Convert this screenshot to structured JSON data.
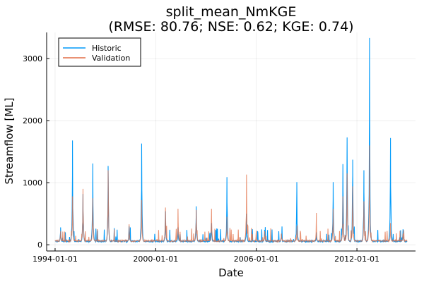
{
  "chart_data": {
    "type": "line",
    "title": "split_mean_NmKGE",
    "subtitle": "(RMSE: 80.76; NSE: 0.62; KGE: 0.74)",
    "xlabel": "Date",
    "ylabel": "Streamflow [ML]",
    "x_range": [
      "1993-07-01",
      "2015-06-30"
    ],
    "x_ticks": [
      "1994-01-01",
      "2000-01-01",
      "2006-01-01",
      "2012-01-01"
    ],
    "y_range": [
      -100,
      3420
    ],
    "y_ticks": [
      0,
      1000,
      2000,
      3000
    ],
    "grid": true,
    "legend_position": "top-left",
    "series": [
      {
        "name": "Historic",
        "color": "#009AFA",
        "baseflow": 45,
        "peaks": [
          [
            "1994-05-01",
            280
          ],
          [
            "1995-01-15",
            1680
          ],
          [
            "1995-09-01",
            820
          ],
          [
            "1996-04-01",
            1310
          ],
          [
            "1997-03-01",
            1270
          ],
          [
            "1998-06-01",
            300
          ],
          [
            "1999-03-01",
            1630
          ],
          [
            "2000-08-01",
            540
          ],
          [
            "2001-05-01",
            280
          ],
          [
            "2002-06-01",
            620
          ],
          [
            "2003-05-01",
            350
          ],
          [
            "2004-04-01",
            1090
          ],
          [
            "2005-06-01",
            500
          ],
          [
            "2006-07-01",
            240
          ],
          [
            "2007-07-01",
            170
          ],
          [
            "2008-06-01",
            1010
          ],
          [
            "2009-08-01",
            200
          ],
          [
            "2010-08-01",
            1010
          ],
          [
            "2011-03-01",
            1300
          ],
          [
            "2011-06-01",
            1730
          ],
          [
            "2011-10-01",
            1370
          ],
          [
            "2012-06-01",
            1200
          ],
          [
            "2012-10-01",
            3330
          ],
          [
            "2014-01-01",
            1720
          ],
          [
            "2014-10-01",
            250
          ]
        ]
      },
      {
        "name": "Validation",
        "color": "#E26F46",
        "baseflow": 50,
        "peaks": [
          [
            "1994-05-01",
            220
          ],
          [
            "1995-01-15",
            780
          ],
          [
            "1995-09-01",
            900
          ],
          [
            "1996-04-01",
            750
          ],
          [
            "1997-03-01",
            1200
          ],
          [
            "1998-06-01",
            330
          ],
          [
            "1999-03-01",
            720
          ],
          [
            "2000-08-01",
            600
          ],
          [
            "2001-05-01",
            580
          ],
          [
            "2002-06-01",
            560
          ],
          [
            "2003-05-01",
            580
          ],
          [
            "2004-04-01",
            450
          ],
          [
            "2005-06-01",
            1130
          ],
          [
            "2006-07-01",
            220
          ],
          [
            "2007-07-01",
            180
          ],
          [
            "2008-06-01",
            220
          ],
          [
            "2009-08-01",
            350
          ],
          [
            "2010-08-01",
            580
          ],
          [
            "2011-03-01",
            780
          ],
          [
            "2011-06-01",
            1150
          ],
          [
            "2011-10-01",
            940
          ],
          [
            "2012-06-01",
            700
          ],
          [
            "2012-10-01",
            1600
          ],
          [
            "2014-01-01",
            350
          ],
          [
            "2014-10-01",
            180
          ]
        ]
      }
    ]
  }
}
